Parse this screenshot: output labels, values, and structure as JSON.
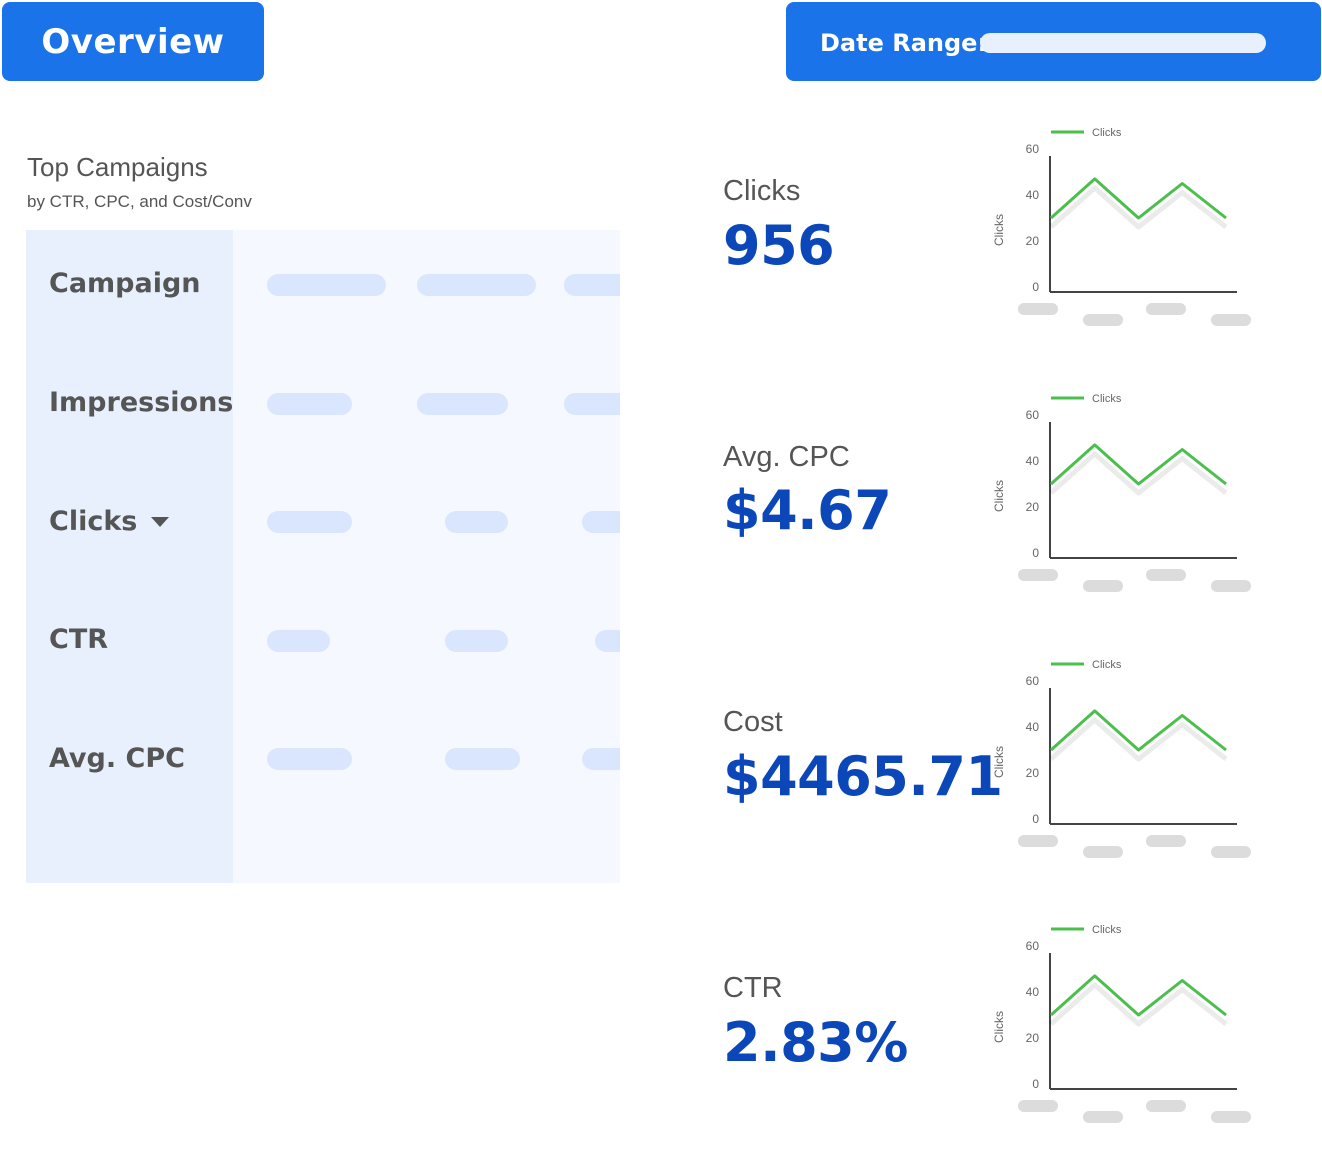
{
  "header": {
    "overview_label": "Overview",
    "date_range_label": "Date Range:",
    "date_range_value": ""
  },
  "top_campaigns": {
    "title": "Top Campaigns",
    "subtitle": "by CTR, CPC, and Cost/Conv",
    "rows": [
      {
        "label": "Campaign"
      },
      {
        "label": "Impressions"
      },
      {
        "label": "Clicks",
        "sorted": "desc"
      },
      {
        "label": "CTR"
      },
      {
        "label": "Avg. CPC"
      }
    ]
  },
  "metrics": [
    {
      "label": "Clicks",
      "value": "956"
    },
    {
      "label": "Avg. CPC",
      "value": "$4.67"
    },
    {
      "label": "Cost",
      "value": "$4465.71"
    },
    {
      "label": "CTR",
      "value": "2.83%"
    }
  ],
  "colors": {
    "primary": "#1a73e8",
    "metric_value": "#0b47b8",
    "series": "#4bbf4b",
    "table_header_bg": "#e8f0fe",
    "table_bg": "#f5f8fe",
    "placeholder": "#d9e6fd"
  },
  "chart_data": [
    {
      "type": "line",
      "ylabel": "Clicks",
      "ylim": [
        0,
        60
      ],
      "yticks": [
        "0",
        "20",
        "40",
        "60"
      ],
      "grid": false,
      "legend": "top-left",
      "series": [
        {
          "name": "Clicks",
          "values": [
            30,
            47,
            30,
            45,
            30
          ]
        }
      ]
    },
    {
      "type": "line",
      "ylabel": "Clicks",
      "ylim": [
        0,
        60
      ],
      "yticks": [
        "0",
        "20",
        "40",
        "60"
      ],
      "grid": false,
      "legend": "top-left",
      "series": [
        {
          "name": "Clicks",
          "values": [
            30,
            47,
            30,
            45,
            30
          ]
        }
      ]
    },
    {
      "type": "line",
      "ylabel": "Clicks",
      "ylim": [
        0,
        60
      ],
      "yticks": [
        "0",
        "20",
        "40",
        "60"
      ],
      "grid": false,
      "legend": "top-left",
      "series": [
        {
          "name": "Clicks",
          "values": [
            30,
            47,
            30,
            45,
            30
          ]
        }
      ]
    },
    {
      "type": "line",
      "ylabel": "Clicks",
      "ylim": [
        0,
        60
      ],
      "yticks": [
        "0",
        "20",
        "40",
        "60"
      ],
      "grid": false,
      "legend": "top-left",
      "series": [
        {
          "name": "Clicks",
          "values": [
            30,
            47,
            30,
            45,
            30
          ]
        }
      ]
    }
  ]
}
